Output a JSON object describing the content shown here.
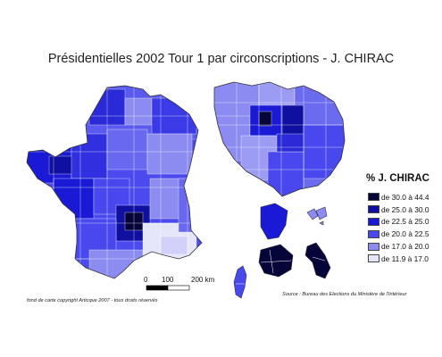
{
  "title": "Présidentielles 2002 Tour 1 par circonscriptions - J. CHIRAC",
  "legend": {
    "title": "% J. CHIRAC",
    "items": [
      {
        "label": "de 30.0 à 44.4",
        "color": "#05053a"
      },
      {
        "label": "de 25.0 à 30.0",
        "color": "#1010a0"
      },
      {
        "label": "de 22.5 à 25.0",
        "color": "#1a1ad6"
      },
      {
        "label": "de 20.0 à 22.5",
        "color": "#4848ee"
      },
      {
        "label": "de 17.0 à 20.0",
        "color": "#8b8bf2"
      },
      {
        "label": "de 11.9 à 17.0",
        "color": "#e6e6fb"
      }
    ]
  },
  "scale_bar": {
    "ticks": [
      "0",
      "100"
    ],
    "end_label": "200 km"
  },
  "credit": "fond de carte copyright Articque 2007 - tous droits réservés",
  "source": "Source : Bureau des Elections du Ministère de l'Intérieur"
}
